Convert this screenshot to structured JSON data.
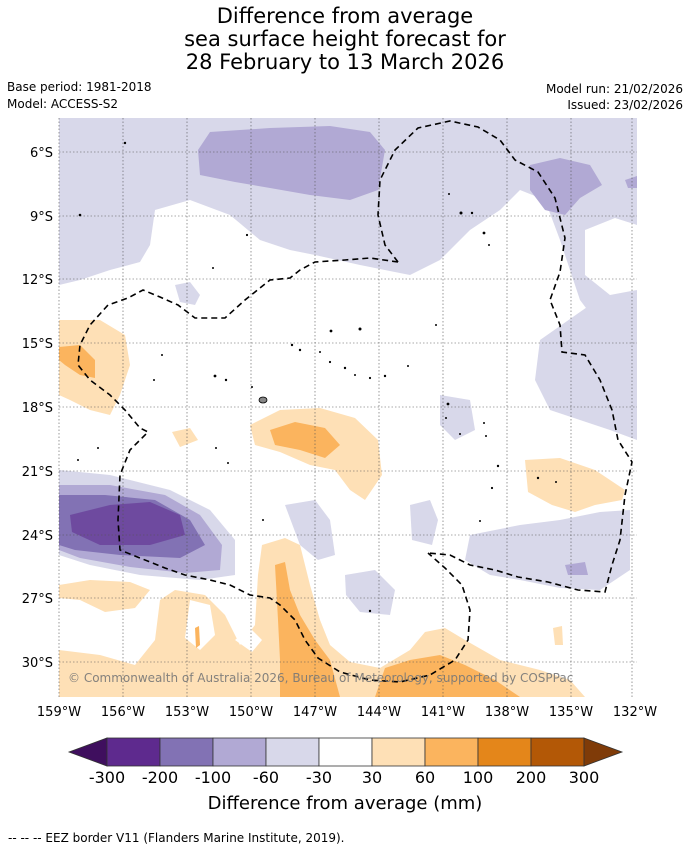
{
  "title": {
    "line1": "Difference from average",
    "line2": "sea surface height forecast for",
    "line3": "28 February to 13 March 2026"
  },
  "meta": {
    "base_period": "Base period: 1981-2018",
    "model": "Model: ACCESS-S2",
    "model_run": "Model run: 21/02/2026",
    "issued": "Issued: 23/02/2026"
  },
  "map": {
    "copyright": "© Commonwealth of Australia 2026, Bureau of Meteorology, supported by COSPPac",
    "lat_labels": [
      "6°S",
      "9°S",
      "12°S",
      "15°S",
      "18°S",
      "21°S",
      "24°S",
      "27°S",
      "30°S"
    ],
    "lon_labels": [
      "159°W",
      "156°W",
      "153°W",
      "150°W",
      "147°W",
      "144°W",
      "141°W",
      "138°W",
      "135°W",
      "132°W"
    ]
  },
  "legend": {
    "title": "Difference from average (mm)",
    "ticks": [
      "-300",
      "-200",
      "-100",
      "-60",
      "-30",
      "30",
      "60",
      "100",
      "200",
      "300"
    ],
    "colors": [
      "#3f0f5e",
      "#5e2a8e",
      "#8272b4",
      "#b1a9d4",
      "#d8d8ea",
      "#ffffff",
      "#fee0b6",
      "#fbb45e",
      "#e4861a",
      "#b35806",
      "#7f3b08"
    ]
  },
  "footnote": "-- -- -- EEZ border V11 (Flanders Marine Institute, 2019)."
}
